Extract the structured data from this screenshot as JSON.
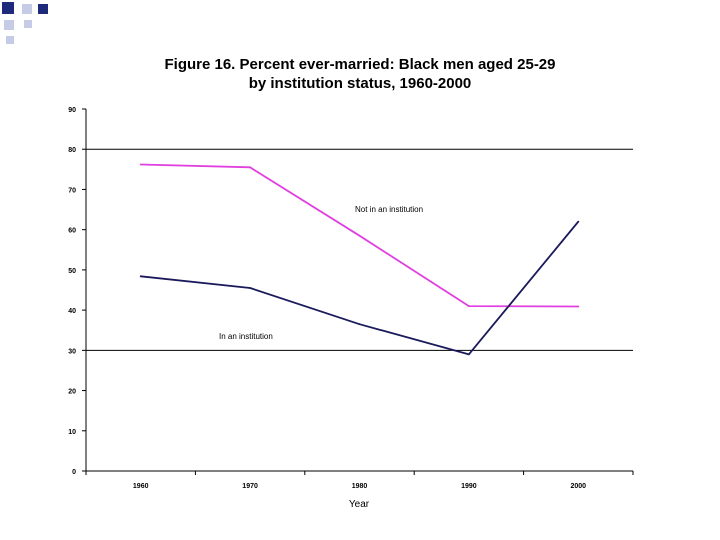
{
  "chart_data": {
    "type": "line",
    "title_lines": [
      "Figure 16. Percent ever-married: Black men aged 25-29",
      "by institution status, 1960-2000"
    ],
    "xlabel": "Year",
    "ylabel": "",
    "categories": [
      "1960",
      "1970",
      "1980",
      "1990",
      "2000"
    ],
    "ylim": [
      0,
      90
    ],
    "yticks": [
      0,
      10,
      20,
      30,
      40,
      50,
      60,
      70,
      80,
      90
    ],
    "gridlines_at": [
      30,
      80
    ],
    "series": [
      {
        "name": "Not in an institution",
        "color": "#e040e0",
        "values": [
          76.2,
          75.5,
          58.5,
          41.0,
          40.9
        ]
      },
      {
        "name": "In an institution",
        "color": "#1a1a5c",
        "values": [
          48.4,
          45.5,
          36.5,
          29.0,
          62.0
        ]
      }
    ],
    "legend": "inline labels"
  },
  "theme": {
    "bullet_dark": "#1f2a7a",
    "bullet_light": "#c7cce6"
  }
}
